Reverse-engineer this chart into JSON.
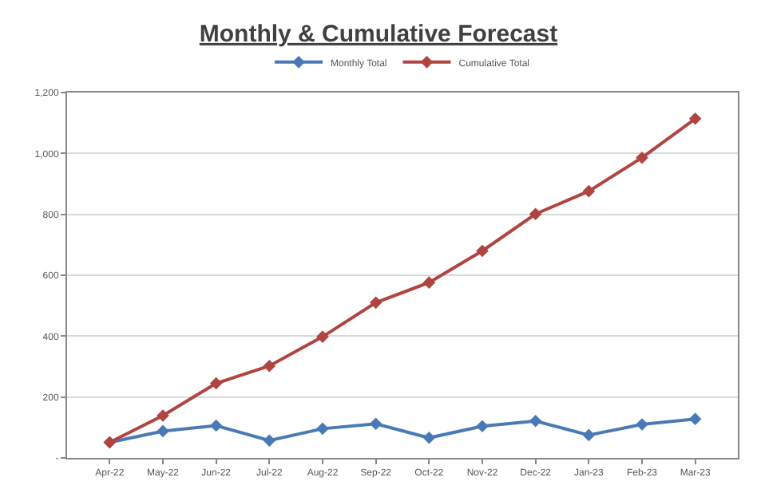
{
  "chart_data": {
    "type": "line",
    "title": "Monthly & Cumulative Forecast",
    "categories": [
      "Apr-22",
      "May-22",
      "Jun-22",
      "Jul-22",
      "Aug-22",
      "Sep-22",
      "Oct-22",
      "Nov-22",
      "Dec-22",
      "Jan-23",
      "Feb-23",
      "Mar-23"
    ],
    "series": [
      {
        "name": "Monthly Total",
        "color": "#4a7ab5",
        "values": [
          51,
          88,
          106,
          57,
          96,
          112,
          66,
          104,
          121,
          75,
          110,
          128
        ]
      },
      {
        "name": "Cumulative Total",
        "color": "#b04441",
        "values": [
          51,
          139,
          245,
          302,
          398,
          510,
          576,
          680,
          801,
          876,
          986,
          1114
        ]
      }
    ],
    "ylim": [
      0,
      1200
    ],
    "yticks": [
      {
        "value": 0,
        "label": "-"
      },
      200,
      400,
      600,
      800,
      {
        "value": 1000,
        "label": "1,000"
      },
      {
        "value": 1200,
        "label": "1,200"
      }
    ],
    "grid": "y",
    "legend": "top",
    "marker": "diamond",
    "line_style": "solid"
  }
}
